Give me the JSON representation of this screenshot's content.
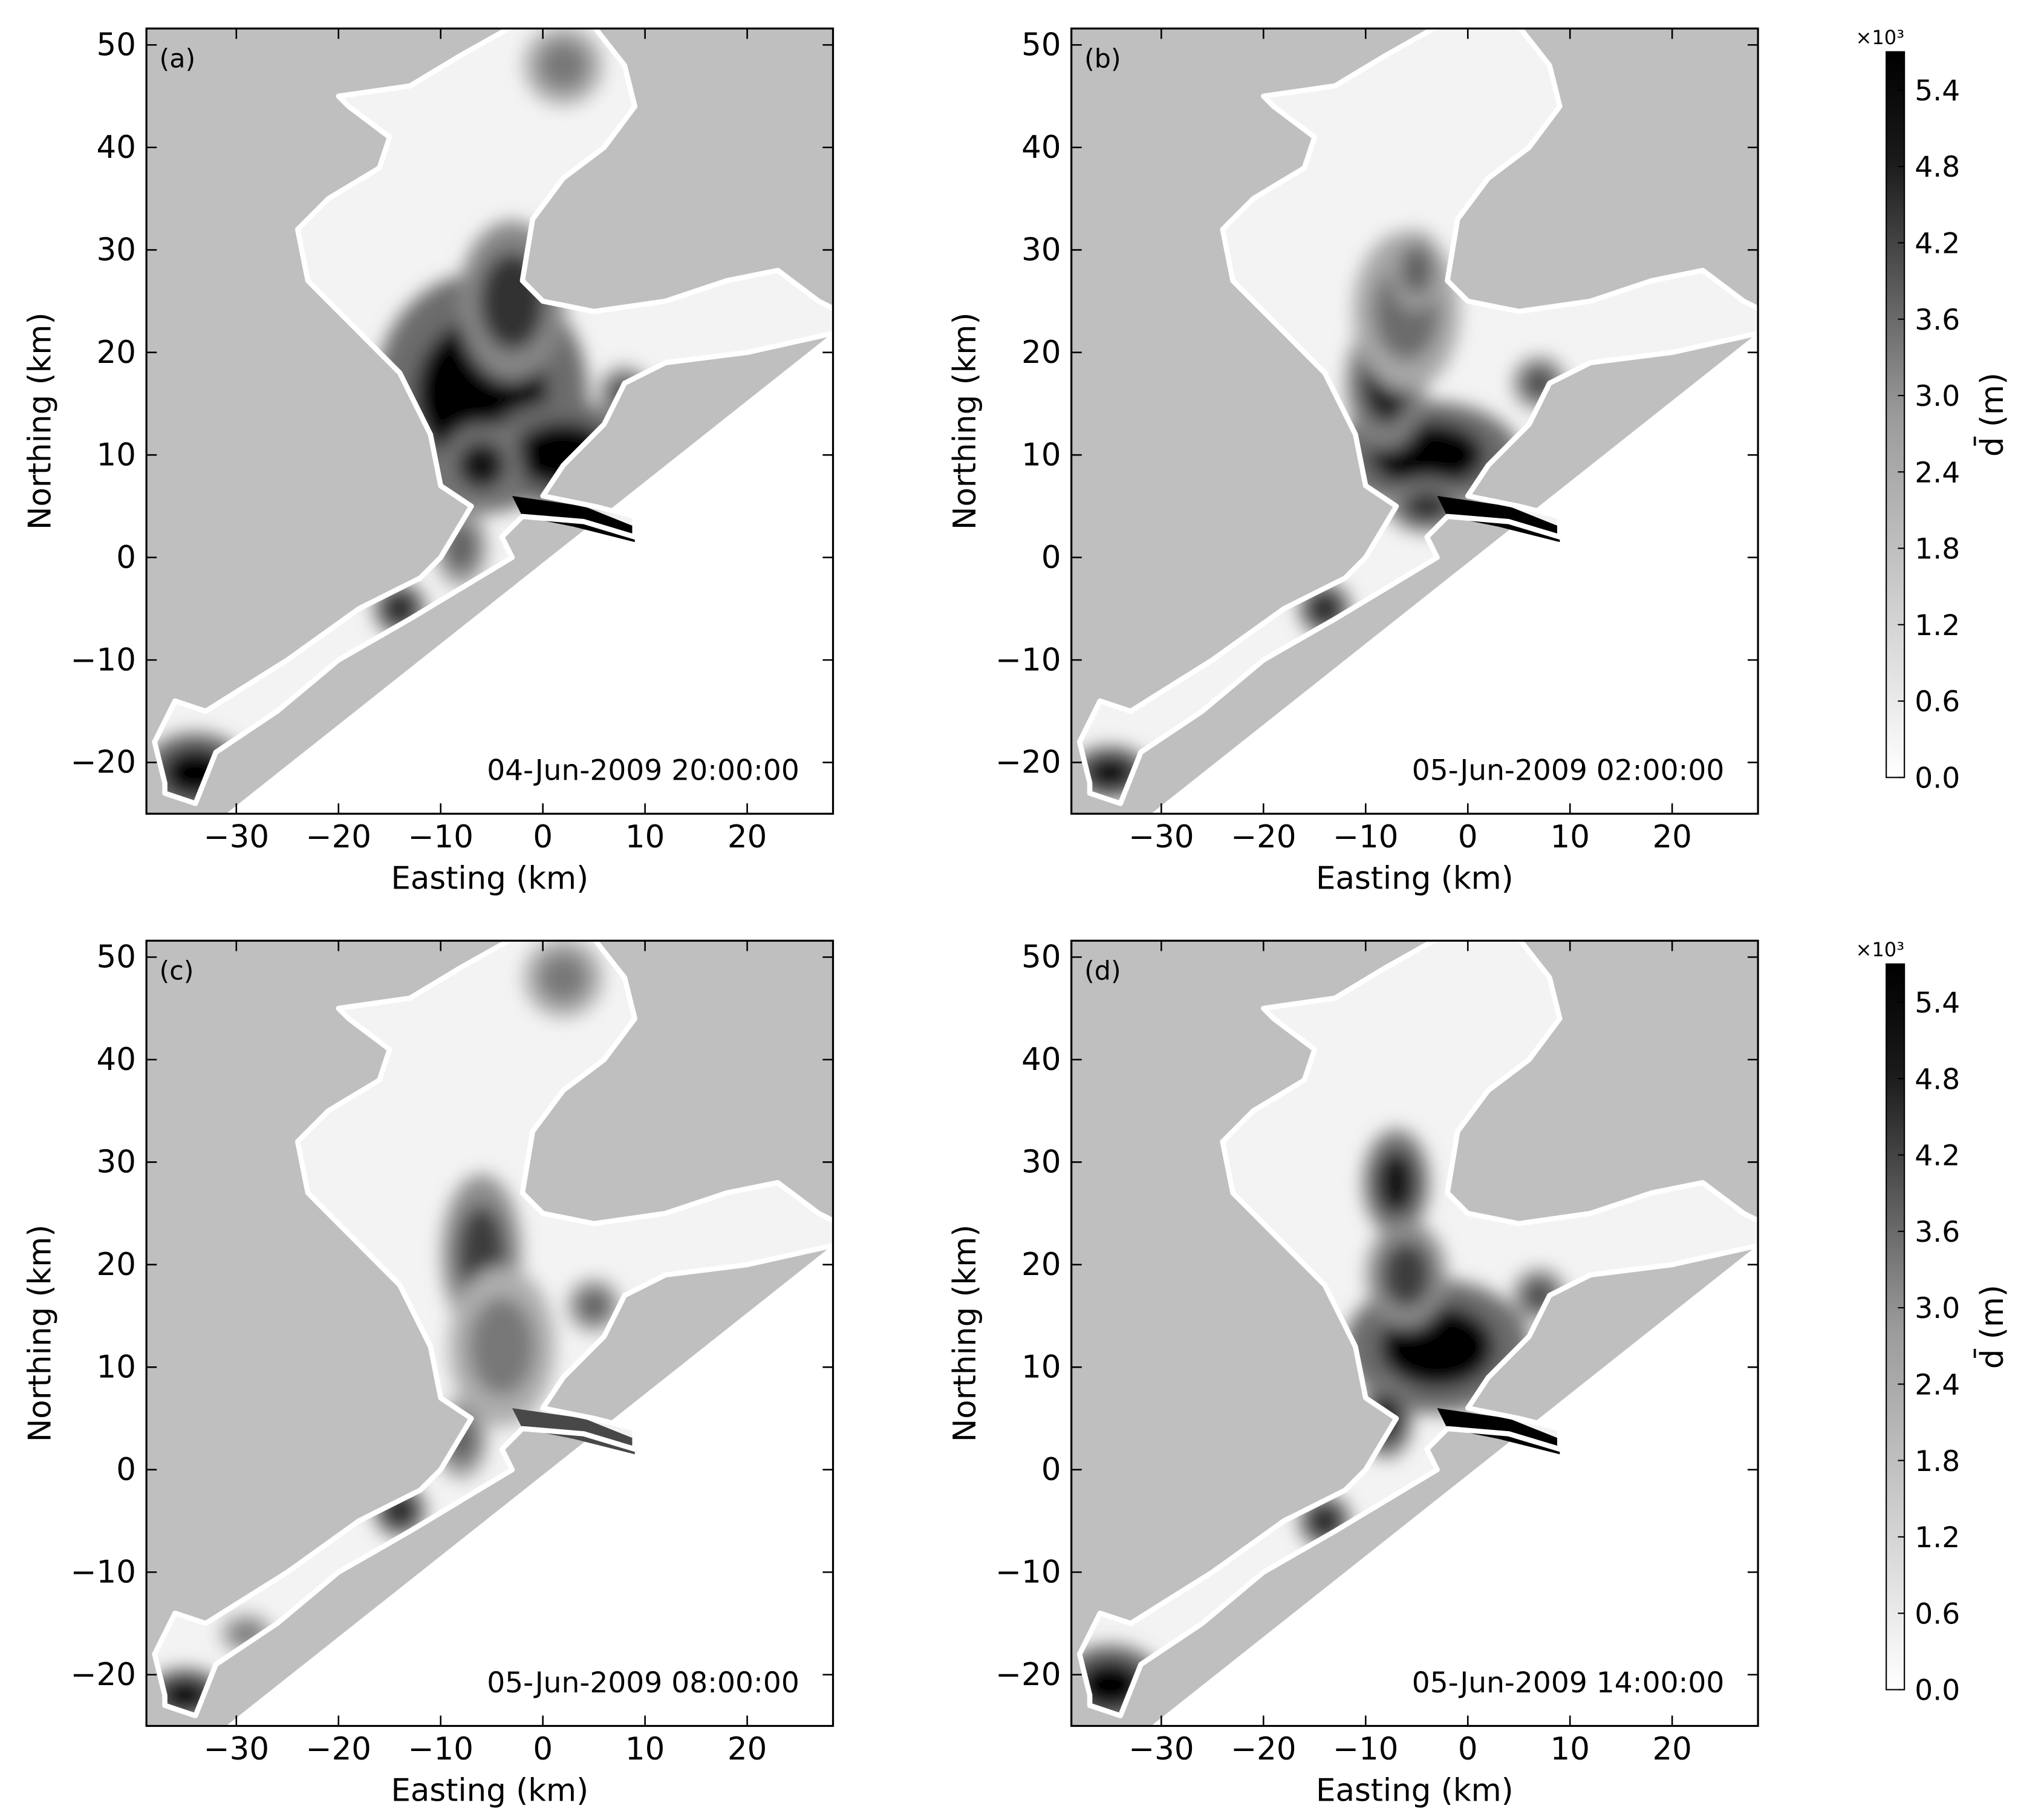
{
  "chart_data": [
    {
      "type": "contour",
      "panel_label": "(a)",
      "annotation": "04-Jun-2009 20:00:00",
      "xlabel": "Easting (km)",
      "ylabel": "Northing (km)",
      "xlim": [
        -38.8,
        28.4
      ],
      "ylim": [
        -25,
        51.6
      ],
      "xticks": [
        {
          "value": -30,
          "label": "−30"
        },
        {
          "value": -20,
          "label": "−20"
        },
        {
          "value": -10,
          "label": "−10"
        },
        0,
        10,
        20
      ],
      "yticks": [
        {
          "value": -20,
          "label": "−20"
        },
        {
          "value": -10,
          "label": "−10"
        },
        0,
        10,
        20,
        30,
        40,
        50
      ]
    },
    {
      "type": "contour",
      "panel_label": "(b)",
      "annotation": "05-Jun-2009 02:00:00",
      "xlabel": "Easting (km)",
      "ylabel": "Northing (km)",
      "xlim": [
        -38.8,
        28.4
      ],
      "ylim": [
        -25,
        51.6
      ],
      "xticks": [
        {
          "value": -30,
          "label": "−30"
        },
        {
          "value": -20,
          "label": "−20"
        },
        {
          "value": -10,
          "label": "−10"
        },
        0,
        10,
        20
      ],
      "yticks": [
        {
          "value": -20,
          "label": "−20"
        },
        {
          "value": -10,
          "label": "−10"
        },
        0,
        10,
        20,
        30,
        40,
        50
      ],
      "colorbar": {
        "label": "d̄ (m)",
        "multiplier": "×10³",
        "lim": [
          0,
          5.7
        ],
        "ticks": [
          {
            "value": 0,
            "label": "0.0"
          },
          0.6,
          1.2,
          1.8,
          2.4,
          {
            "value": 3,
            "label": "3.0"
          },
          3.6,
          4.2,
          4.8,
          5.4
        ]
      }
    },
    {
      "type": "contour",
      "panel_label": "(c)",
      "annotation": "05-Jun-2009 08:00:00",
      "xlabel": "Easting (km)",
      "ylabel": "Northing (km)",
      "xlim": [
        -38.8,
        28.4
      ],
      "ylim": [
        -25,
        51.6
      ],
      "xticks": [
        {
          "value": -30,
          "label": "−30"
        },
        {
          "value": -20,
          "label": "−20"
        },
        {
          "value": -10,
          "label": "−10"
        },
        0,
        10,
        20
      ],
      "yticks": [
        {
          "value": -20,
          "label": "−20"
        },
        {
          "value": -10,
          "label": "−10"
        },
        0,
        10,
        20,
        30,
        40,
        50
      ]
    },
    {
      "type": "contour",
      "panel_label": "(d)",
      "annotation": "05-Jun-2009 14:00:00",
      "xlabel": "Easting (km)",
      "ylabel": "Northing (km)",
      "xlim": [
        -38.8,
        28.4
      ],
      "ylim": [
        -25,
        51.6
      ],
      "xticks": [
        {
          "value": -30,
          "label": "−30"
        },
        {
          "value": -20,
          "label": "−20"
        },
        {
          "value": -10,
          "label": "−10"
        },
        0,
        10,
        20
      ],
      "yticks": [
        {
          "value": -20,
          "label": "−20"
        },
        {
          "value": -10,
          "label": "−10"
        },
        0,
        10,
        20,
        30,
        40,
        50
      ],
      "colorbar": {
        "label": "d̄ (m)",
        "multiplier": "×10³",
        "lim": [
          0,
          5.7
        ],
        "ticks": [
          {
            "value": 0,
            "label": "0.0"
          },
          0.6,
          1.2,
          1.8,
          2.4,
          {
            "value": 3,
            "label": "3.0"
          },
          3.6,
          4.2,
          4.8,
          5.4
        ]
      }
    }
  ]
}
